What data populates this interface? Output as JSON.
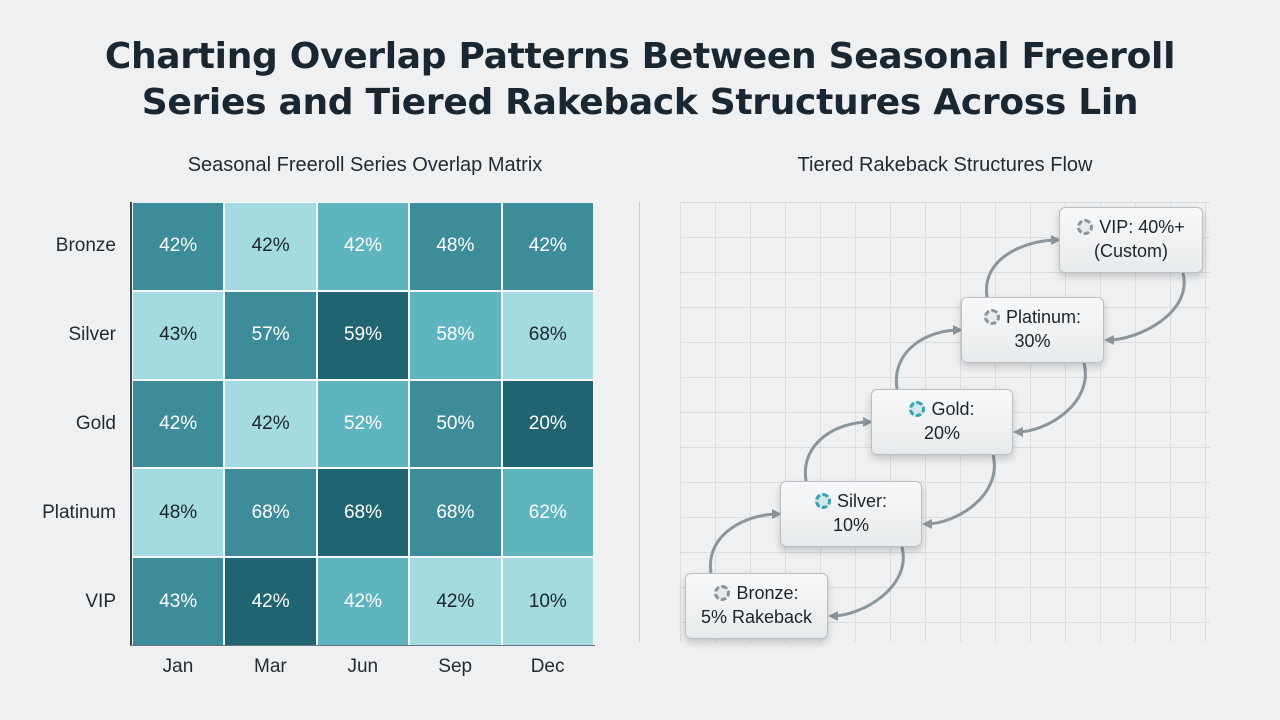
{
  "title_line1": "Charting Overlap Patterns Between Seasonal Freeroll",
  "title_line2": "Series and Tiered Rakeback Structures Across Lin",
  "chart_data": [
    {
      "type": "heatmap",
      "title": "Seasonal Freeroll Series Overlap Matrix",
      "rows": [
        "Bronze",
        "Silver",
        "Gold",
        "Platinum",
        "VIP"
      ],
      "columns": [
        "Jan",
        "Mar",
        "Jun",
        "Sep",
        "Dec"
      ],
      "cells": [
        [
          {
            "v": "42%",
            "s": 3
          },
          {
            "v": "42%",
            "s": 1
          },
          {
            "v": "42%",
            "s": 2
          },
          {
            "v": "48%",
            "s": 3
          },
          {
            "v": "42%",
            "s": 3
          }
        ],
        [
          {
            "v": "43%",
            "s": 1
          },
          {
            "v": "57%",
            "s": 3
          },
          {
            "v": "59%",
            "s": 4
          },
          {
            "v": "58%",
            "s": 2
          },
          {
            "v": "68%",
            "s": 1
          }
        ],
        [
          {
            "v": "42%",
            "s": 3
          },
          {
            "v": "42%",
            "s": 1
          },
          {
            "v": "52%",
            "s": 2
          },
          {
            "v": "50%",
            "s": 3
          },
          {
            "v": "20%",
            "s": 4
          }
        ],
        [
          {
            "v": "48%",
            "s": 1
          },
          {
            "v": "68%",
            "s": 3
          },
          {
            "v": "68%",
            "s": 4
          },
          {
            "v": "68%",
            "s": 3
          },
          {
            "v": "62%",
            "s": 2
          }
        ],
        [
          {
            "v": "43%",
            "s": 3
          },
          {
            "v": "42%",
            "s": 4
          },
          {
            "v": "42%",
            "s": 2
          },
          {
            "v": "42%",
            "s": 1
          },
          {
            "v": "10%",
            "s": 1
          }
        ]
      ],
      "colors": [
        "#a4dbe1",
        "#5fb5bf",
        "#3d8c99",
        "#1f6470"
      ]
    },
    {
      "type": "flow",
      "title": "Tiered Rakeback Structures Flow",
      "tiers": [
        {
          "line1": "Bronze:",
          "line2": "5% Rakeback",
          "chip": "gray"
        },
        {
          "line1": "Silver:",
          "line2": "10%",
          "chip": "teal"
        },
        {
          "line1": "Gold:",
          "line2": "20%",
          "chip": "teal"
        },
        {
          "line1": "Platinum:",
          "line2": "30%",
          "chip": "gray"
        },
        {
          "line1": "VIP: 40%+",
          "line2": "(Custom)",
          "chip": "gray"
        }
      ]
    }
  ]
}
